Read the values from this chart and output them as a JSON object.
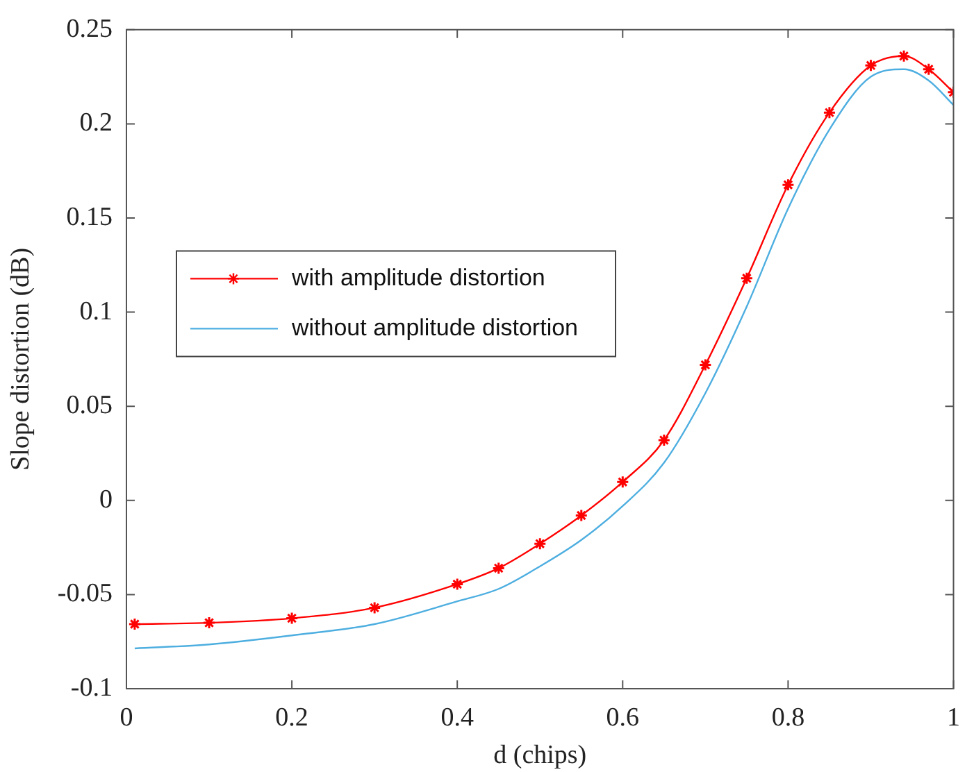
{
  "chart_data": {
    "type": "line",
    "xlabel": "d (chips)",
    "ylabel": "Slope distortion (dB)",
    "x": [
      0.01,
      0.1,
      0.2,
      0.3,
      0.4,
      0.45,
      0.5,
      0.55,
      0.6,
      0.65,
      0.7,
      0.75,
      0.8,
      0.85,
      0.9,
      0.94,
      0.97,
      1.0
    ],
    "series": [
      {
        "name": "with amplitude distortion",
        "color": "#ff0000",
        "marker": "cross",
        "values": [
          -0.0657,
          -0.065,
          -0.0626,
          -0.057,
          -0.0445,
          -0.036,
          -0.023,
          -0.008,
          0.0098,
          0.032,
          0.072,
          0.118,
          0.1676,
          0.206,
          0.231,
          0.236,
          0.229,
          0.2168
        ]
      },
      {
        "name": "without amplitude distortion",
        "color": "#4daee0",
        "marker": "none",
        "values": [
          -0.0786,
          -0.0765,
          -0.0717,
          -0.0657,
          -0.0536,
          -0.047,
          -0.035,
          -0.021,
          -0.003,
          0.02,
          0.057,
          0.103,
          0.155,
          0.197,
          0.225,
          0.229,
          0.223,
          0.21
        ]
      }
    ],
    "xlim": [
      0,
      1
    ],
    "xticks": [
      0,
      0.2,
      0.4,
      0.6,
      0.8,
      1
    ],
    "ylim": [
      -0.1,
      0.25
    ],
    "yticks": [
      -0.1,
      -0.05,
      0,
      0.05,
      0.1,
      0.15,
      0.2,
      0.25
    ],
    "grid": false,
    "legend": "center left",
    "line_style": "solid"
  }
}
